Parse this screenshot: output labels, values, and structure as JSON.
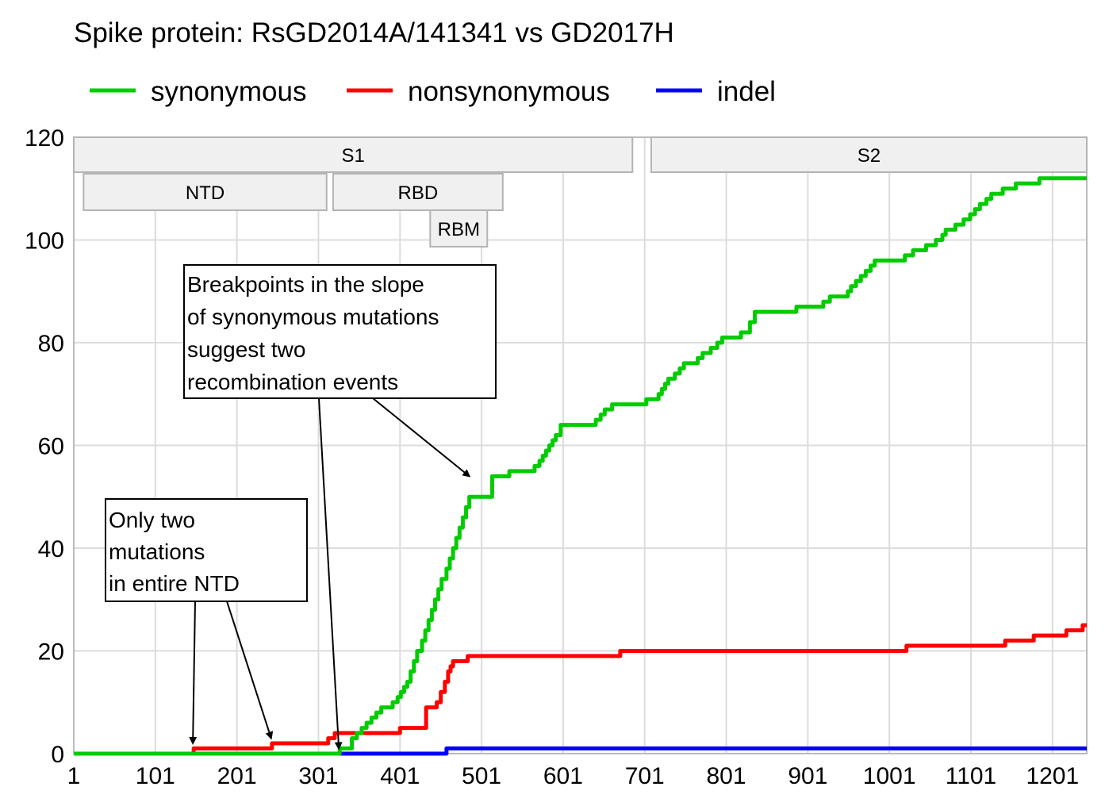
{
  "chart_data": {
    "type": "line",
    "title": "Spike protein: RsGD2014A/141341 vs GD2017H",
    "xlabel": "",
    "ylabel": "",
    "xlim": [
      1,
      1243
    ],
    "ylim": [
      0,
      120
    ],
    "grid": true,
    "legend_position": "top",
    "x_ticks": [
      1,
      101,
      201,
      301,
      401,
      501,
      601,
      701,
      801,
      901,
      1001,
      1101,
      1201
    ],
    "x_tick_labels": [
      "1",
      "101",
      "201",
      "301",
      "401",
      "501",
      "601",
      "701",
      "801",
      "901",
      "1001",
      "1101",
      "1201"
    ],
    "y_ticks": [
      0,
      20,
      40,
      60,
      80,
      100,
      120
    ],
    "y_tick_labels": [
      "0",
      "20",
      "40",
      "60",
      "80",
      "100",
      "120"
    ],
    "series": [
      {
        "name": "synonymous",
        "color": "#00cc00",
        "step": true,
        "x": [
          1,
          327,
          342,
          348,
          354,
          360,
          366,
          372,
          378,
          392,
          398,
          402,
          406,
          410,
          414,
          418,
          422,
          428,
          432,
          436,
          440,
          444,
          448,
          452,
          458,
          462,
          466,
          470,
          474,
          478,
          482,
          486,
          514,
          535,
          566,
          572,
          576,
          580,
          584,
          588,
          592,
          598,
          641,
          647,
          652,
          661,
          703,
          718,
          722,
          726,
          730,
          738,
          744,
          749,
          766,
          772,
          782,
          790,
          796,
          819,
          830,
          836,
          887,
          920,
          928,
          950,
          954,
          960,
          966,
          972,
          978,
          983,
          1020,
          1030,
          1046,
          1058,
          1066,
          1070,
          1082,
          1092,
          1100,
          1106,
          1112,
          1120,
          1126,
          1140,
          1156,
          1185,
          1202,
          1243
        ],
        "y": [
          0,
          1,
          3,
          4,
          5,
          6,
          7,
          8,
          9,
          10,
          11,
          12,
          13,
          14,
          16,
          18,
          20,
          22,
          24,
          26,
          28,
          30,
          32,
          34,
          36,
          38,
          40,
          42,
          44,
          46,
          48,
          50,
          54,
          55,
          56,
          57,
          58,
          59,
          60,
          61,
          62,
          64,
          65,
          66,
          67,
          68,
          69,
          70,
          71,
          72,
          73,
          74,
          75,
          76,
          77,
          78,
          79,
          80,
          81,
          82,
          84,
          86,
          87,
          88,
          89,
          90,
          91,
          92,
          93,
          94,
          95,
          96,
          97,
          98,
          99,
          100,
          101,
          102,
          103,
          104,
          105,
          106,
          107,
          108,
          109,
          110,
          111,
          112,
          112,
          112
        ]
      },
      {
        "name": "nonsynonymous",
        "color": "#ff0000",
        "step": true,
        "x": [
          1,
          148,
          244,
          313,
          321,
          401,
          433,
          446,
          451,
          456,
          460,
          463,
          466,
          484,
          671,
          1022,
          1143,
          1178,
          1218,
          1238,
          1243
        ],
        "y": [
          0,
          1,
          2,
          3,
          4,
          5,
          9,
          10,
          12,
          14,
          16,
          17,
          18,
          19,
          20,
          21,
          22,
          23,
          24,
          25,
          25
        ]
      },
      {
        "name": "indel",
        "color": "#0000ff",
        "step": true,
        "x": [
          1,
          458,
          1243
        ],
        "y": [
          0,
          1,
          1
        ]
      }
    ],
    "domains": [
      {
        "label": "S1",
        "start": 1,
        "end": 686,
        "row": 0
      },
      {
        "label": "S2",
        "start": 709,
        "end": 1243,
        "row": 0
      },
      {
        "label": "NTD",
        "start": 13,
        "end": 311,
        "row": 1
      },
      {
        "label": "RBD",
        "start": 319,
        "end": 527,
        "row": 1
      },
      {
        "label": "RBM",
        "start": 438,
        "end": 508,
        "row": 2
      }
    ],
    "annotations": [
      {
        "lines": [
          "Breakpoints in the slope",
          "of synonymous mutations",
          "suggest two",
          "recombination events"
        ],
        "arrows_to": [
          {
            "x": 326,
            "y": 1
          },
          {
            "x": 486,
            "y": 54
          }
        ]
      },
      {
        "lines": [
          "Only two",
          "mutations",
          "in entire NTD"
        ],
        "arrows_to": [
          {
            "x": 147,
            "y": 2
          },
          {
            "x": 243,
            "y": 3
          }
        ]
      }
    ]
  }
}
